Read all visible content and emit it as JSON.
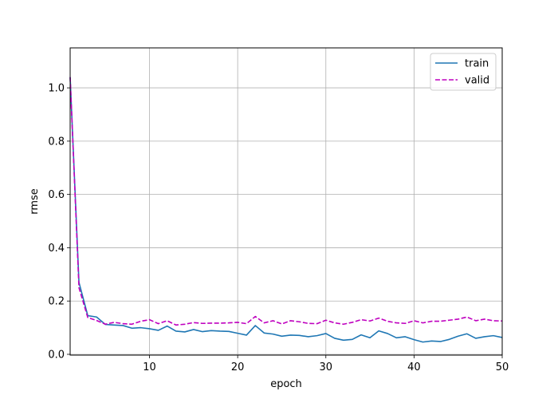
{
  "chart_data": {
    "type": "line",
    "title": "",
    "xlabel": "epoch",
    "ylabel": "rmse",
    "xlim": [
      1,
      50
    ],
    "ylim": [
      -0.003,
      1.15
    ],
    "xticks": [
      10,
      20,
      30,
      40,
      50
    ],
    "yticks": [
      0.0,
      0.2,
      0.4,
      0.6,
      0.8,
      1.0
    ],
    "ytick_labels": [
      "0.0",
      "0.2",
      "0.4",
      "0.6",
      "0.8",
      "1.0"
    ],
    "grid": true,
    "legend_location": "top-right",
    "x": [
      1,
      2,
      3,
      4,
      5,
      6,
      7,
      8,
      9,
      10,
      11,
      12,
      13,
      14,
      15,
      16,
      17,
      18,
      19,
      20,
      21,
      22,
      23,
      24,
      25,
      26,
      27,
      28,
      29,
      30,
      31,
      32,
      33,
      34,
      35,
      36,
      37,
      38,
      39,
      40,
      41,
      42,
      43,
      44,
      45,
      46,
      47,
      48,
      49,
      50
    ],
    "series": [
      {
        "name": "train",
        "color": "#1f77b4",
        "dash": "solid",
        "values": [
          1.04,
          0.27,
          0.145,
          0.14,
          0.112,
          0.11,
          0.108,
          0.098,
          0.1,
          0.096,
          0.09,
          0.106,
          0.087,
          0.084,
          0.093,
          0.085,
          0.089,
          0.087,
          0.086,
          0.079,
          0.072,
          0.108,
          0.08,
          0.076,
          0.068,
          0.072,
          0.071,
          0.066,
          0.07,
          0.078,
          0.06,
          0.053,
          0.056,
          0.073,
          0.062,
          0.088,
          0.078,
          0.062,
          0.066,
          0.055,
          0.046,
          0.05,
          0.048,
          0.056,
          0.068,
          0.077,
          0.06,
          0.066,
          0.07,
          0.063
        ]
      },
      {
        "name": "valid",
        "color": "#bf00bf",
        "dash": "dashed",
        "values": [
          1.04,
          0.25,
          0.138,
          0.127,
          0.113,
          0.12,
          0.115,
          0.113,
          0.124,
          0.13,
          0.115,
          0.126,
          0.11,
          0.113,
          0.119,
          0.116,
          0.117,
          0.117,
          0.118,
          0.12,
          0.115,
          0.142,
          0.118,
          0.126,
          0.114,
          0.126,
          0.122,
          0.116,
          0.115,
          0.128,
          0.118,
          0.113,
          0.12,
          0.13,
          0.125,
          0.136,
          0.124,
          0.118,
          0.116,
          0.126,
          0.118,
          0.124,
          0.124,
          0.128,
          0.132,
          0.14,
          0.126,
          0.132,
          0.126,
          0.125
        ]
      }
    ]
  }
}
